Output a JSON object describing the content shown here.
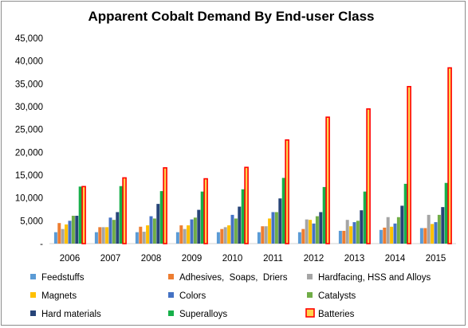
{
  "chart_data": {
    "type": "bar",
    "title": "Apparent Cobalt Demand By End-user Class",
    "xlabel": "",
    "ylabel": "",
    "ylim": [
      0,
      45000
    ],
    "yticks": [
      {
        "value": 0,
        "label": "-"
      },
      {
        "value": 5000,
        "label": "5,000"
      },
      {
        "value": 10000,
        "label": "10,000"
      },
      {
        "value": 15000,
        "label": "15,000"
      },
      {
        "value": 20000,
        "label": "20,000"
      },
      {
        "value": 25000,
        "label": "25,000"
      },
      {
        "value": 30000,
        "label": "30,000"
      },
      {
        "value": 35000,
        "label": "35,000"
      },
      {
        "value": 40000,
        "label": "40,000"
      },
      {
        "value": 45000,
        "label": "45,000"
      }
    ],
    "grid": false,
    "legend_position": "bottom",
    "categories": [
      "2006",
      "2007",
      "2008",
      "2009",
      "2010",
      "2011",
      "2012",
      "2013",
      "2014",
      "2015"
    ],
    "series": [
      {
        "name": "Feedstuffs",
        "color": "#5b9bd5",
        "values": [
          2500,
          2500,
          2500,
          2500,
          2500,
          2500,
          2500,
          2800,
          3000,
          3400
        ]
      },
      {
        "name": "Adhesives,  Soaps,  Driers",
        "color": "#ed7d31",
        "values": [
          4500,
          3600,
          3700,
          4000,
          3200,
          3800,
          3200,
          2800,
          3500,
          3400
        ]
      },
      {
        "name": "Hardfacing, HSS and Alloys",
        "color": "#a5a5a5",
        "values": [
          3200,
          3600,
          2600,
          3200,
          3600,
          3800,
          5300,
          5200,
          5800,
          6300
        ]
      },
      {
        "name": "Magnets",
        "color": "#ffc000",
        "values": [
          4200,
          3600,
          4000,
          4000,
          4000,
          5500,
          5200,
          3800,
          3700,
          4300
        ]
      },
      {
        "name": "Colors",
        "color": "#4472c4",
        "values": [
          5000,
          5700,
          6000,
          5300,
          6300,
          6900,
          4400,
          4700,
          4400,
          4700
        ]
      },
      {
        "name": "Catalysts",
        "color": "#70ad47",
        "values": [
          6100,
          5200,
          5500,
          5700,
          5500,
          6900,
          6000,
          5000,
          5800,
          6300
        ]
      },
      {
        "name": "Hard materials",
        "color": "#264478",
        "values": [
          6100,
          6900,
          8700,
          7400,
          8100,
          9900,
          6900,
          7300,
          8300,
          8000
        ]
      },
      {
        "name": "Superalloys",
        "color": "#17b04a",
        "values": [
          12500,
          12600,
          11500,
          11400,
          11900,
          14400,
          12400,
          11400,
          13100,
          13300
        ]
      },
      {
        "name": "Batteries",
        "color": "#ffd34d",
        "border": "#ff0000",
        "values": [
          12500,
          14400,
          16600,
          14200,
          16700,
          22700,
          27700,
          29500,
          34400,
          38500
        ]
      }
    ]
  }
}
